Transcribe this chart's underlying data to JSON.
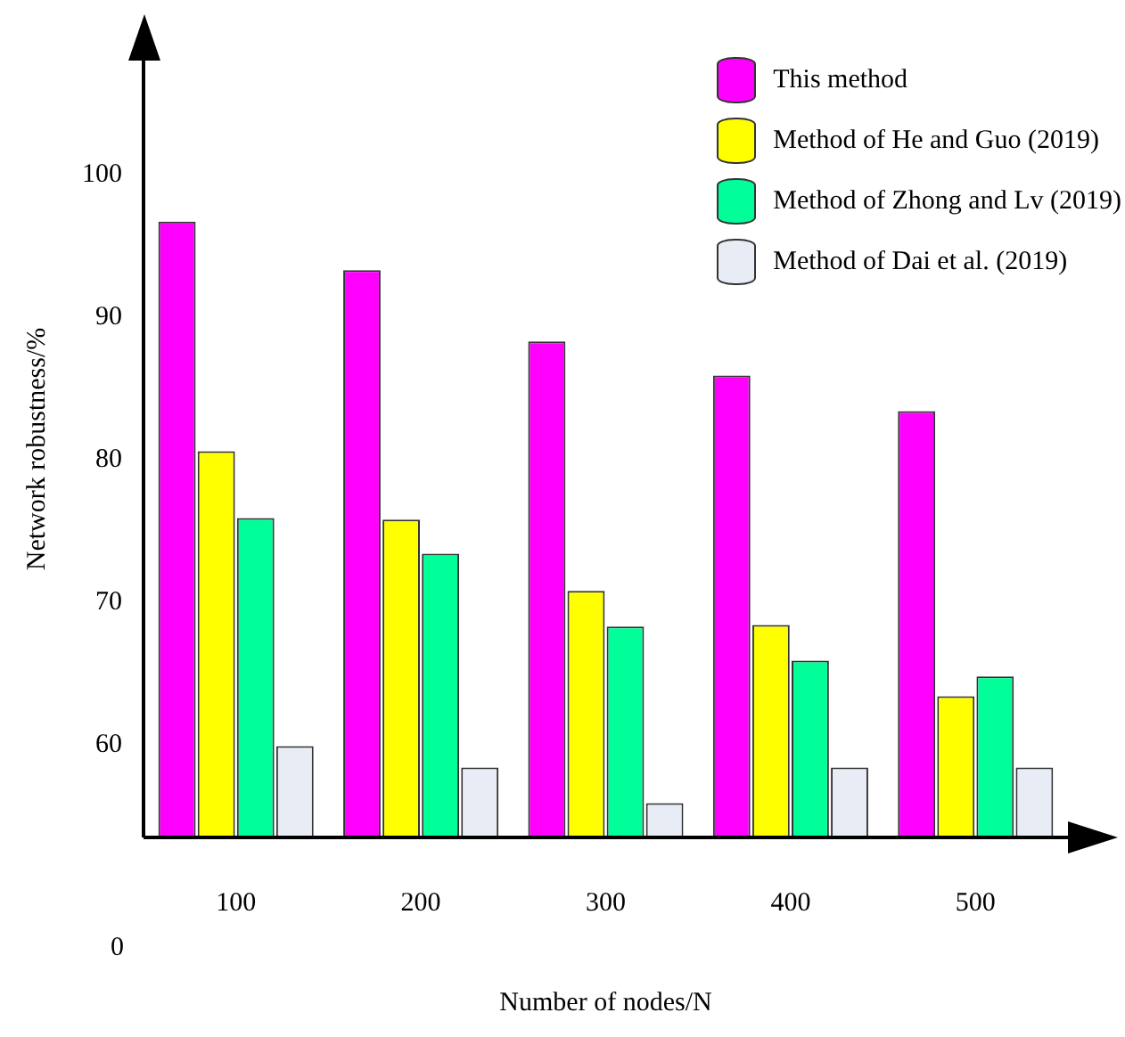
{
  "chart_data": {
    "type": "bar",
    "xlabel": "Number of nodes/N",
    "ylabel": "Network robustness/%",
    "categories": [
      "100",
      "200",
      "300",
      "400",
      "500"
    ],
    "series": [
      {
        "name": "This method",
        "color": "#ff00ff",
        "values": [
          96.7,
          93.3,
          88.3,
          85.9,
          83.4
        ]
      },
      {
        "name": "Method of He and Guo (2019)",
        "color": "#ffff00",
        "values": [
          80.6,
          75.8,
          70.8,
          68.4,
          63.4
        ]
      },
      {
        "name": "Method of Zhong and Lv (2019)",
        "color": "#00ff99",
        "values": [
          75.9,
          73.4,
          68.3,
          65.9,
          64.8
        ]
      },
      {
        "name": "Method of Dai et al. (2019)",
        "color": "#e8ecf4",
        "values": [
          59.9,
          58.4,
          55.9,
          58.4,
          58.4
        ]
      }
    ],
    "ylim": [
      53.5,
      108
    ],
    "yticks": [
      60,
      70,
      80,
      90,
      100
    ],
    "grid": false,
    "legend": "top right",
    "annotations": [
      "0"
    ]
  }
}
